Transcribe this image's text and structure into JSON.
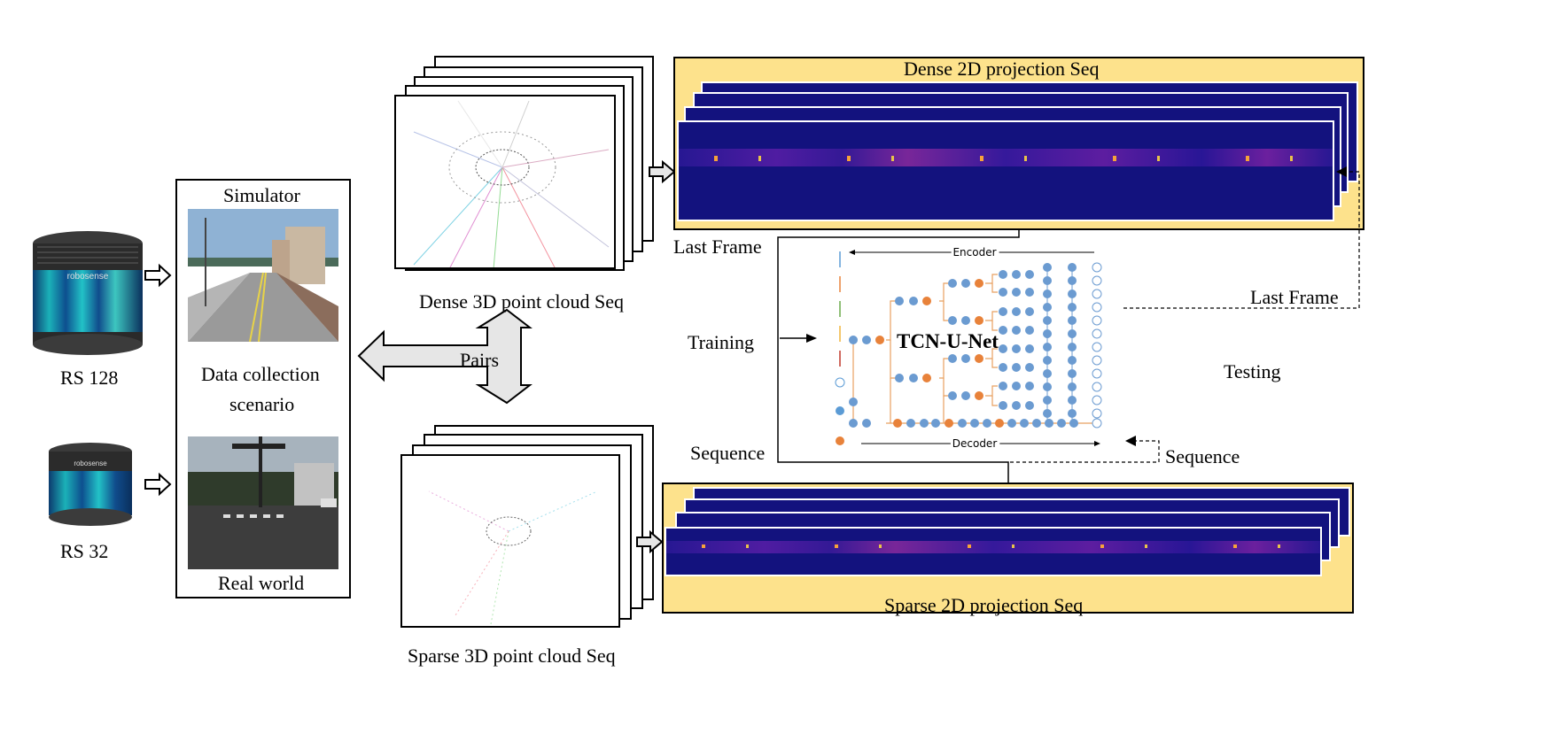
{
  "labels": {
    "rs128": "RS 128",
    "rs32": "RS 32",
    "simulator": "Simulator",
    "data_collection_line1": "Data collection",
    "data_collection_line2": "scenario",
    "real_world": "Real world",
    "pairs": "Pairs",
    "dense_3d": "Dense 3D point cloud Seq",
    "sparse_3d": "Sparse 3D point cloud Seq",
    "dense_2d": "Dense 2D projection Seq",
    "sparse_2d": "Sparse 2D projection Seq",
    "last_frame_left": "Last Frame",
    "last_frame_right": "Last Frame",
    "training": "Training",
    "testing": "Testing",
    "sequence_left": "Sequence",
    "sequence_right": "Sequence",
    "model": "TCN-U-Net",
    "encoder": "Encoder",
    "decoder": "Decoder",
    "lidar_brand": "robosense"
  },
  "colors": {
    "yellow_bg": "#fde28c",
    "projection_blue": "#13127e",
    "node_blue": "#6b9bd1",
    "node_orange": "#e8823a",
    "arrow_fill": "#e6e6e6"
  }
}
